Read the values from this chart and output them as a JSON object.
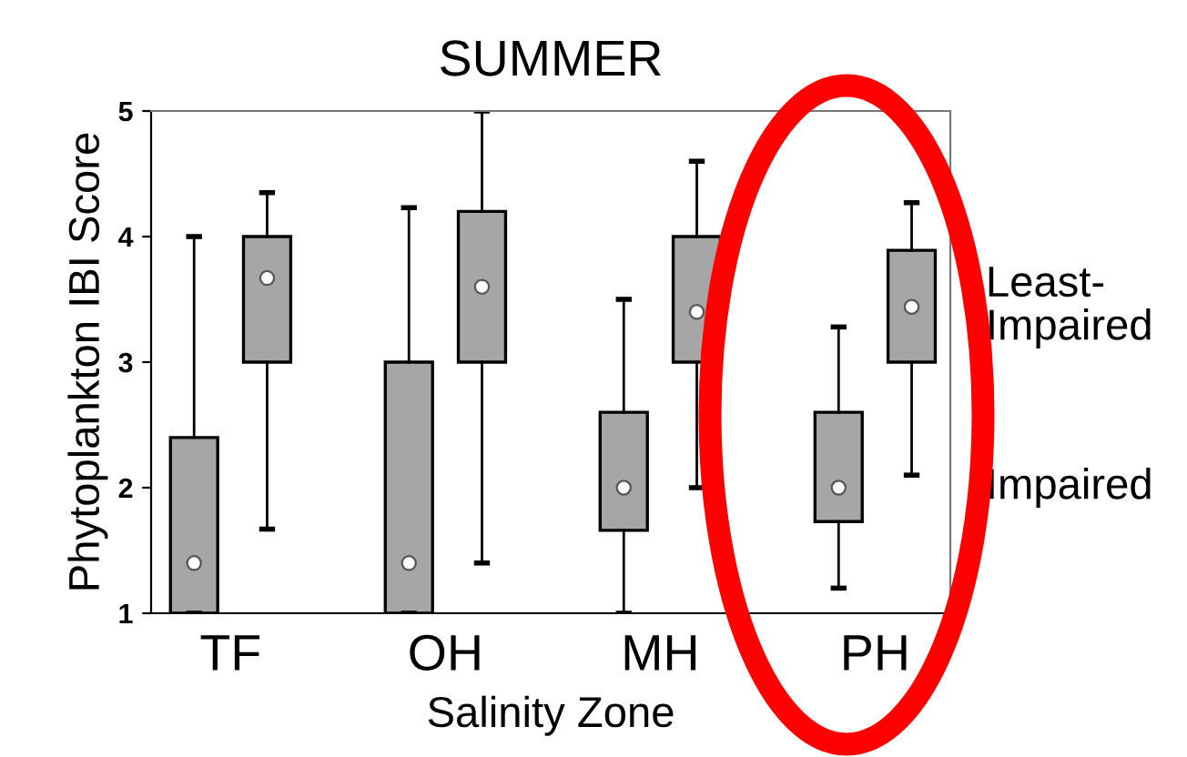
{
  "chart_data": {
    "type": "box",
    "title": "SUMMER",
    "xlabel": "Salinity Zone",
    "ylabel": "Phytoplankton IBI Score",
    "categories": [
      "TF",
      "OH",
      "MH",
      "PH"
    ],
    "series": [
      {
        "name": "Impaired",
        "color": "#a6a6a6",
        "boxes": [
          {
            "low": 1,
            "q1": 1,
            "median": 1.4,
            "q3": 2.4,
            "high": 4.0
          },
          {
            "low": 1,
            "q1": 1,
            "median": 1.4,
            "q3": 3.0,
            "high": 4.23
          },
          {
            "low": 1,
            "q1": 1.66,
            "median": 2.0,
            "q3": 2.6,
            "high": 3.5
          },
          {
            "low": 1.2,
            "q1": 1.73,
            "median": 2.0,
            "q3": 2.6,
            "high": 3.28
          }
        ]
      },
      {
        "name": "Least-Impaired",
        "color": "#a6a6a6",
        "boxes": [
          {
            "low": 1.67,
            "q1": 3.0,
            "median": 3.67,
            "q3": 4.0,
            "high": 4.35
          },
          {
            "low": 1.4,
            "q1": 3.0,
            "median": 3.6,
            "q3": 4.2,
            "high": 5.0
          },
          {
            "low": 2.0,
            "q1": 3.0,
            "median": 3.4,
            "q3": 4.0,
            "high": 4.6
          },
          {
            "low": 2.1,
            "q1": 3.0,
            "median": 3.44,
            "q3": 3.89,
            "high": 4.27
          }
        ]
      }
    ],
    "ylim": [
      1,
      5
    ],
    "yticks": [
      1,
      2,
      3,
      4,
      5
    ],
    "grid": false,
    "legend": false
  }
}
